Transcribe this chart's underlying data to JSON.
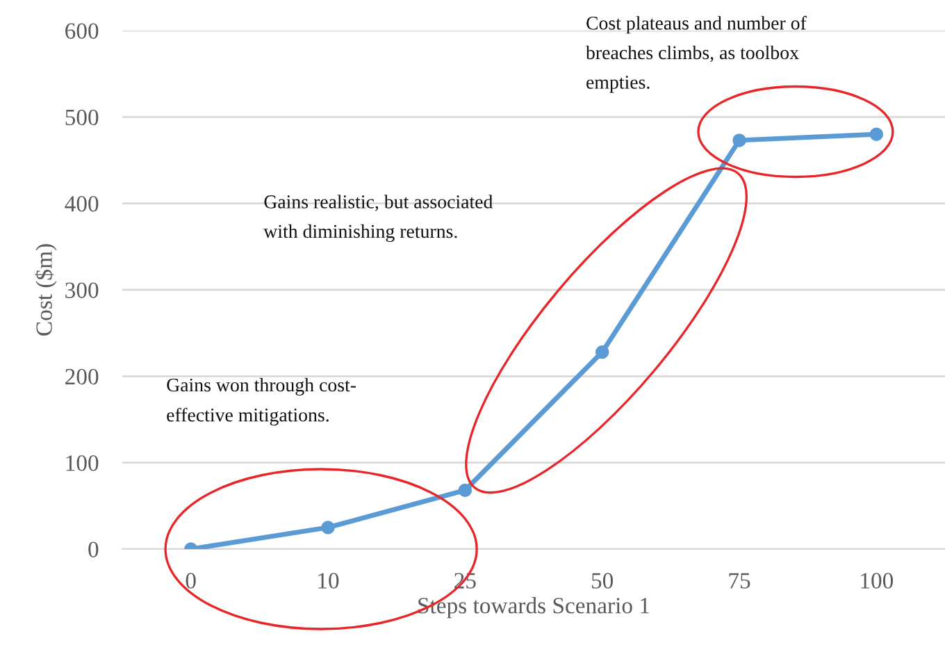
{
  "chart_data": {
    "type": "line",
    "xlabel": "Steps towards Scenario 1",
    "ylabel": "Cost ($m)",
    "categories": [
      "0",
      "10",
      "25",
      "50",
      "75",
      "100"
    ],
    "series": [
      {
        "color": "#5b9bd5",
        "values": [
          0,
          25,
          68,
          228,
          473,
          480
        ]
      }
    ],
    "ylim": [
      0,
      600
    ],
    "yticks": [
      0,
      100,
      200,
      300,
      400,
      500,
      600
    ],
    "grid": "y",
    "marker": "circle",
    "line_style": "solid",
    "annotations": [
      "Gains won through cost-\neffective mitigations.",
      "Gains realistic, but associated\nwith diminishing returns.",
      "Cost plateaus and number of\nbreaches climbs, as toolbox\nempties."
    ]
  }
}
